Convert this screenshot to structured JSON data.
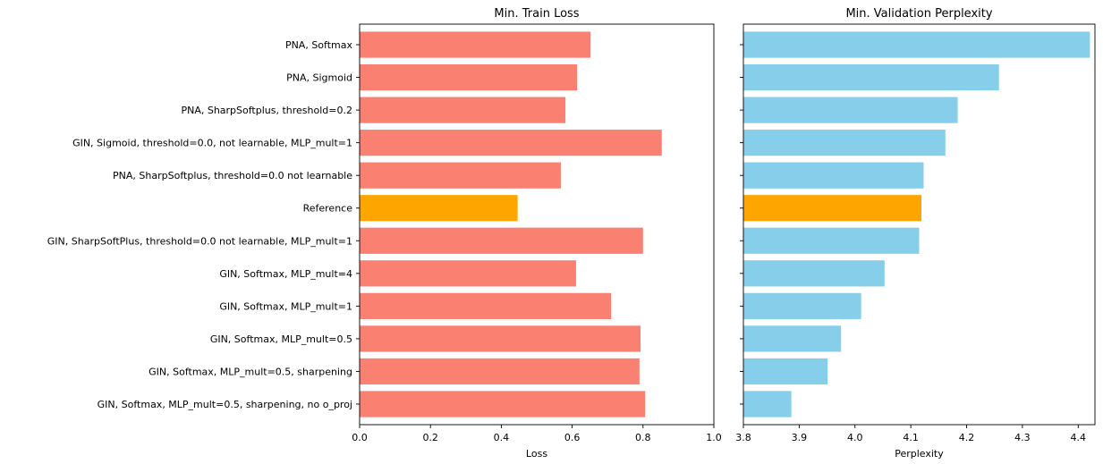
{
  "chart_data": [
    {
      "type": "bar",
      "orientation": "horizontal",
      "title": "Min. Train Loss",
      "xlabel": "Loss",
      "ylabel": "",
      "xlim": [
        0.0,
        1.0
      ],
      "xticks": [
        0.0,
        0.2,
        0.4,
        0.6,
        0.8,
        1.0
      ],
      "xtick_labels": [
        "0.0",
        "0.2",
        "0.4",
        "0.6",
        "0.8",
        "1.0"
      ],
      "categories": [
        "PNA, Softmax",
        "PNA, Sigmoid",
        "PNA, SharpSoftplus, threshold=0.2",
        "GIN, Sigmoid, threshold=0.0, not learnable, MLP_mult=1",
        "PNA, SharpSoftplus, threshold=0.0 not learnable",
        "Reference",
        "GIN, SharpSoftPlus, threshold=0.0 not learnable, MLP_mult=1",
        "GIN, Softmax, MLP_mult=4",
        "GIN, Softmax, MLP_mult=1",
        "GIN, Softmax, MLP_mult=0.5",
        "GIN, Softmax, MLP_mult=0.5, sharpening",
        "GIN, Softmax, MLP_mult=0.5, sharpening, no o_proj"
      ],
      "values": [
        0.652,
        0.614,
        0.581,
        0.853,
        0.568,
        0.446,
        0.8,
        0.611,
        0.71,
        0.793,
        0.79,
        0.806
      ],
      "colors": [
        "#FA8072",
        "#FA8072",
        "#FA8072",
        "#FA8072",
        "#FA8072",
        "#FFA500",
        "#FA8072",
        "#FA8072",
        "#FA8072",
        "#FA8072",
        "#FA8072",
        "#FA8072"
      ],
      "grid": false,
      "legend": false
    },
    {
      "type": "bar",
      "orientation": "horizontal",
      "title": "Min. Validation Perplexity",
      "xlabel": "Perplexity",
      "ylabel": "",
      "xlim": [
        3.8,
        4.43
      ],
      "xticks": [
        3.8,
        3.9,
        4.0,
        4.1,
        4.2,
        4.3,
        4.4
      ],
      "xtick_labels": [
        "3.8",
        "3.9",
        "4.0",
        "4.1",
        "4.2",
        "4.3",
        "4.4"
      ],
      "categories": [
        "PNA, Softmax",
        "PNA, Sigmoid",
        "PNA, SharpSoftplus, threshold=0.2",
        "GIN, Sigmoid, threshold=0.0, not learnable, MLP_mult=1",
        "PNA, SharpSoftplus, threshold=0.0 not learnable",
        "Reference",
        "GIN, SharpSoftPlus, threshold=0.0 not learnable, MLP_mult=1",
        "GIN, Softmax, MLP_mult=4",
        "GIN, Softmax, MLP_mult=1",
        "GIN, Softmax, MLP_mult=0.5",
        "GIN, Softmax, MLP_mult=0.5, sharpening",
        "GIN, Softmax, MLP_mult=0.5, sharpening, no o_proj"
      ],
      "values": [
        4.421,
        4.258,
        4.184,
        4.162,
        4.123,
        4.119,
        4.115,
        4.053,
        4.011,
        3.975,
        3.951,
        3.886
      ],
      "colors": [
        "#87CEEB",
        "#87CEEB",
        "#87CEEB",
        "#87CEEB",
        "#87CEEB",
        "#FFA500",
        "#87CEEB",
        "#87CEEB",
        "#87CEEB",
        "#87CEEB",
        "#87CEEB",
        "#87CEEB"
      ],
      "show_category_labels": false,
      "grid": false,
      "legend": false
    }
  ]
}
